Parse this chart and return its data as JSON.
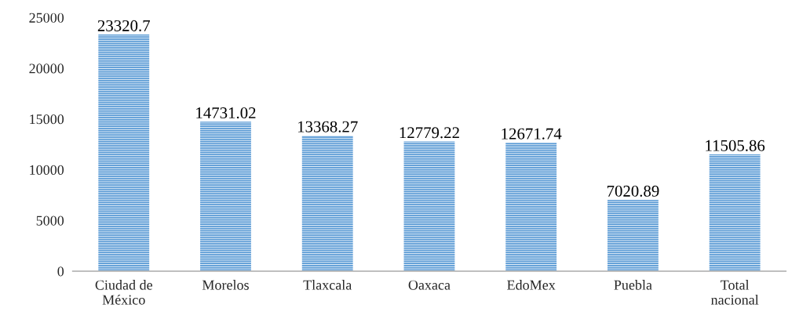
{
  "chart_data": {
    "type": "bar",
    "categories": [
      "Ciudad de\nMéxico",
      "Morelos",
      "Tlaxcala",
      "Oaxaca",
      "EdoMex",
      "Puebla",
      "Total\nnacional"
    ],
    "values": [
      23320.7,
      14731.02,
      13368.27,
      12779.22,
      12671.74,
      7020.89,
      11505.86
    ],
    "color": "#5b9bd5",
    "ylim": [
      0,
      25000
    ],
    "yticks": [
      0,
      5000,
      10000,
      15000,
      20000,
      25000
    ],
    "data_labels": true,
    "grid": false,
    "legend": false
  }
}
